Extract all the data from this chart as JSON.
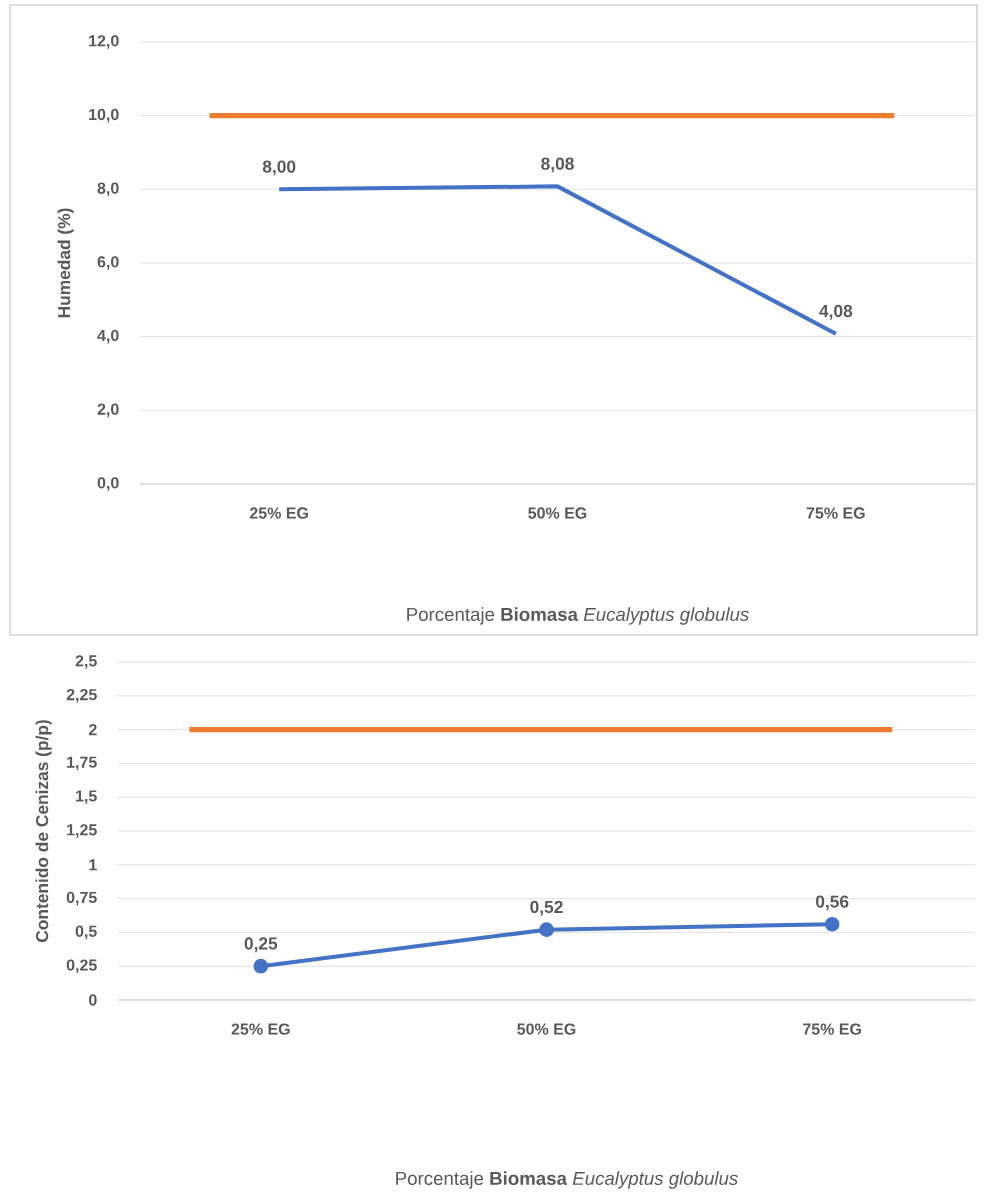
{
  "chart_data": [
    {
      "type": "line",
      "categories": [
        "25% EG",
        "50% EG",
        "75% EG"
      ],
      "series": [
        {
          "color": "#4472c4",
          "values": [
            8,
            8.08,
            4.08
          ],
          "value_labels": [
            "8,00",
            "8,08",
            "4,08"
          ]
        }
      ],
      "ylim": [
        0,
        12
      ],
      "yticks": [
        {
          "value": 0,
          "label": "0,0"
        },
        {
          "value": 2,
          "label": "2,0"
        },
        {
          "value": 4,
          "label": "4,0"
        },
        {
          "value": 6,
          "label": "6,0"
        },
        {
          "value": 8,
          "label": "8,0"
        },
        {
          "value": 10,
          "label": "10,0"
        },
        {
          "value": 12,
          "label": "12,0"
        }
      ],
      "xlabel": "Porcentaje **Biomasa** *Eucalyptus globulus*",
      "ylabel": "Humedad (%)",
      "ref_lines": [
        {
          "axis": "y",
          "value": 10,
          "color": "#ed7d31"
        }
      ],
      "grid": "y",
      "marker": "none",
      "line_style": "solid"
    },
    {
      "type": "line",
      "categories": [
        "25% EG",
        "50% EG",
        "75% EG"
      ],
      "series": [
        {
          "color": "#4472c4",
          "values": [
            0.25,
            0.52,
            0.56
          ],
          "value_labels": [
            "0,25",
            "0,52",
            "0,56"
          ]
        }
      ],
      "ylim": [
        0,
        2.5
      ],
      "yticks": [
        0,
        {
          "value": 0.25,
          "label": "0,25"
        },
        {
          "value": 0.5,
          "label": "0,5"
        },
        {
          "value": 0.75,
          "label": "0,75"
        },
        1,
        {
          "value": 1.25,
          "label": "1,25"
        },
        {
          "value": 1.5,
          "label": "1,5"
        },
        {
          "value": 1.75,
          "label": "1,75"
        },
        2,
        {
          "value": 2.25,
          "label": "2,25"
        },
        {
          "value": 2.5,
          "label": "2,5"
        }
      ],
      "xlabel": "Porcentaje **Biomasa** *Eucalyptus globulus*",
      "ylabel": "Contenido de Cenizas (p/p)",
      "ref_lines": [
        {
          "axis": "y",
          "value": 2,
          "color": "#ed7d31"
        }
      ],
      "grid": "y",
      "marker": "circle",
      "line_style": "solid"
    }
  ]
}
